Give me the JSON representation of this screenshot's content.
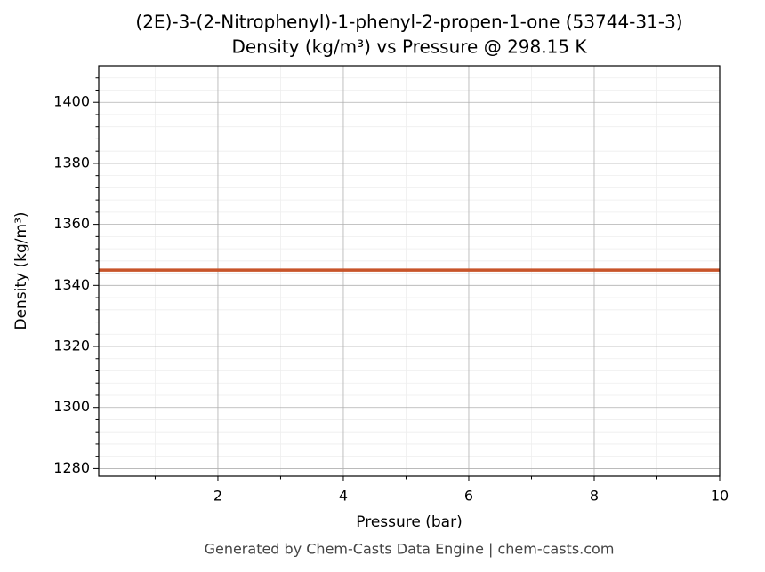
{
  "chart_data": {
    "type": "line",
    "title": "(2E)-3-(2-Nitrophenyl)-1-phenyl-2-propen-1-one (53744-31-3)",
    "subtitle": "Density (kg/m³) vs Pressure @ 298.15 K",
    "x_label": "Pressure (bar)",
    "y_label": "Density (kg/m³)",
    "footer": "Generated by Chem-Casts Data Engine | chem-casts.com",
    "x": [
      0.1,
      10
    ],
    "series": [
      {
        "name": "Density",
        "color": "#c8542a",
        "values": [
          1345,
          1345
        ]
      }
    ],
    "xlim": [
      0.1,
      10
    ],
    "xticks": [
      2,
      4,
      6,
      8,
      10
    ],
    "xminorticks": [
      1,
      3,
      5,
      7,
      9
    ],
    "ylim": [
      1277.5,
      1412
    ],
    "yticks": [
      1280,
      1300,
      1320,
      1340,
      1360,
      1380,
      1400
    ],
    "yminorticks": [
      1284,
      1288,
      1292,
      1296,
      1304,
      1308,
      1312,
      1316,
      1324,
      1328,
      1332,
      1336,
      1344,
      1348,
      1352,
      1356,
      1364,
      1368,
      1372,
      1376,
      1384,
      1388,
      1392,
      1396,
      1404,
      1408
    ],
    "grid": true,
    "legend": false
  }
}
